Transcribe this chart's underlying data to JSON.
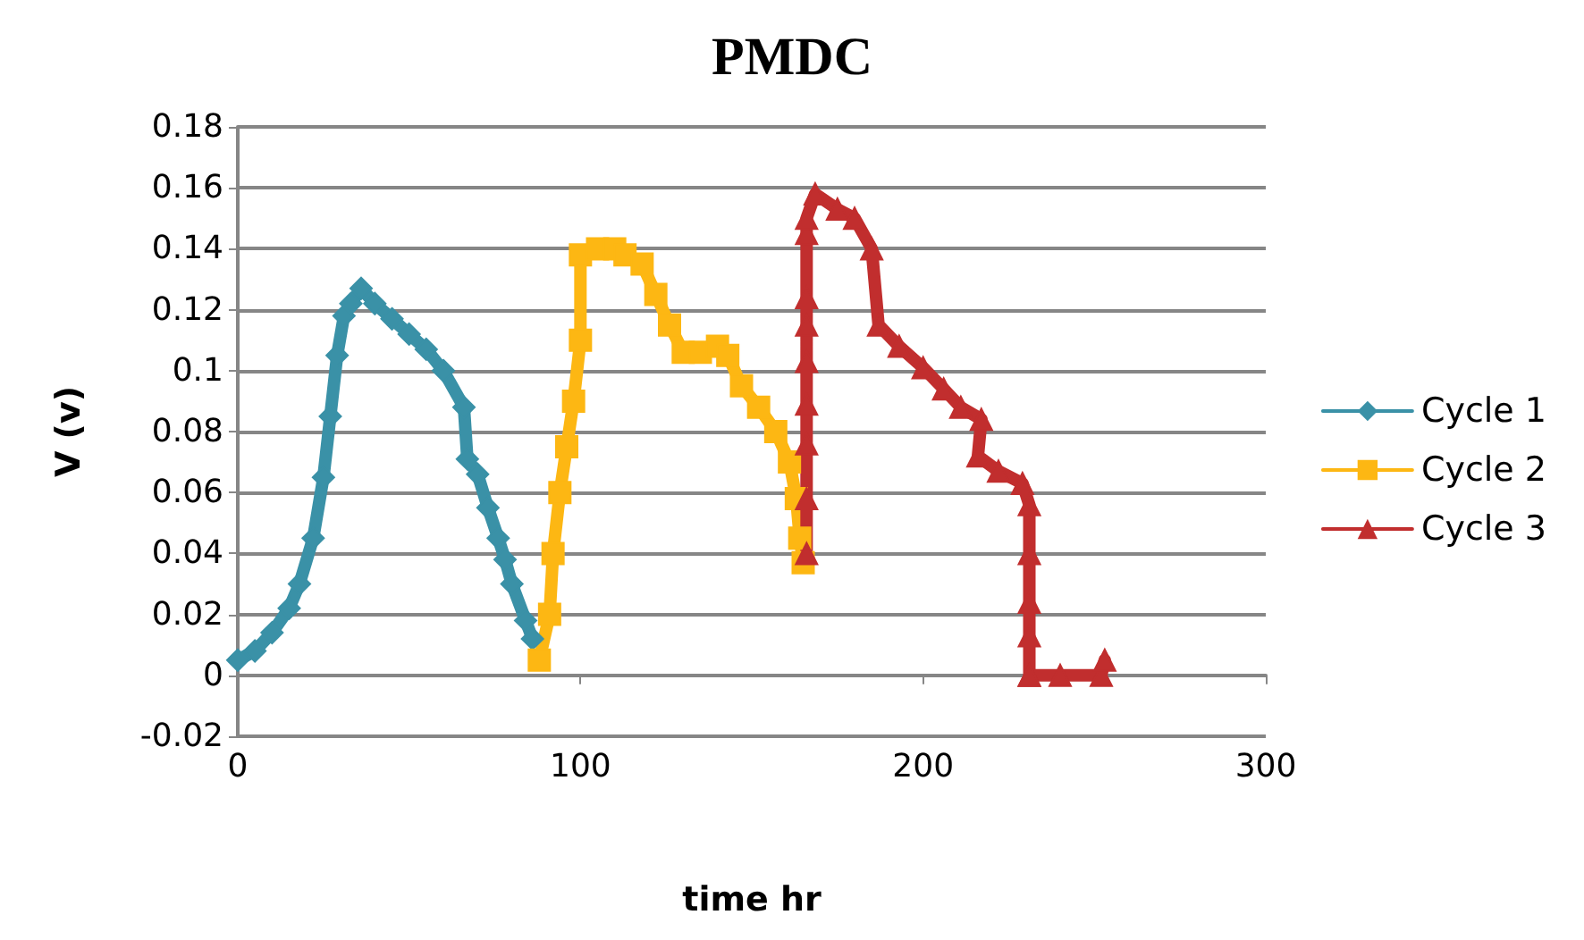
{
  "chart_data": {
    "type": "line",
    "title": "PMDC",
    "xlabel": "time hr",
    "ylabel": "V (v)",
    "xlim": [
      0,
      300
    ],
    "xticks": [
      0,
      100,
      200,
      300
    ],
    "ylim": [
      -0.02,
      0.18
    ],
    "yticks": [
      -0.02,
      0,
      0.02,
      0.04,
      0.06,
      0.08,
      0.1,
      0.12,
      0.14,
      0.16,
      0.18
    ],
    "grid": "y",
    "legend": "right",
    "line_style": "solid",
    "series": [
      {
        "name": "Cycle 1",
        "color": "#3a91a7",
        "marker": "diamond",
        "x": [
          0,
          5,
          10,
          15,
          18,
          22,
          25,
          27,
          29,
          31,
          33,
          36,
          40,
          45,
          50,
          55,
          60,
          66,
          67,
          70,
          73,
          76,
          78,
          80,
          84,
          86
        ],
        "values": [
          0.005,
          0.008,
          0.014,
          0.022,
          0.03,
          0.045,
          0.065,
          0.085,
          0.105,
          0.118,
          0.122,
          0.127,
          0.122,
          0.117,
          0.112,
          0.107,
          0.1,
          0.088,
          0.071,
          0.066,
          0.055,
          0.045,
          0.038,
          0.03,
          0.018,
          0.012
        ]
      },
      {
        "name": "Cycle 2",
        "color": "#fdb713",
        "marker": "square",
        "x": [
          88,
          91,
          92,
          94,
          96,
          98,
          100,
          100,
          105,
          110,
          113,
          118,
          122,
          126,
          130,
          135,
          140,
          143,
          147,
          152,
          157,
          161,
          163,
          164,
          165
        ],
        "values": [
          0.005,
          0.02,
          0.04,
          0.06,
          0.075,
          0.09,
          0.11,
          0.138,
          0.14,
          0.14,
          0.138,
          0.135,
          0.125,
          0.115,
          0.106,
          0.106,
          0.108,
          0.105,
          0.095,
          0.088,
          0.08,
          0.07,
          0.058,
          0.045,
          0.037
        ]
      },
      {
        "name": "Cycle 3",
        "color": "#c12e2e",
        "marker": "triangle",
        "x": [
          166,
          166,
          166,
          166,
          166,
          166,
          166,
          166,
          166,
          168.5,
          175,
          180,
          185,
          187,
          193,
          200,
          206,
          211,
          217,
          216,
          222,
          229,
          231,
          231,
          231,
          231,
          231,
          231,
          240,
          252,
          253
        ],
        "values": [
          0.04,
          0.058,
          0.076,
          0.089,
          0.103,
          0.115,
          0.124,
          0.145,
          0.15,
          0.158,
          0.153,
          0.15,
          0.14,
          0.115,
          0.108,
          0.101,
          0.094,
          0.088,
          0.084,
          0.072,
          0.067,
          0.063,
          0.056,
          0.04,
          0.024,
          0.013,
          0,
          0,
          0,
          0,
          0.005
        ]
      }
    ]
  }
}
